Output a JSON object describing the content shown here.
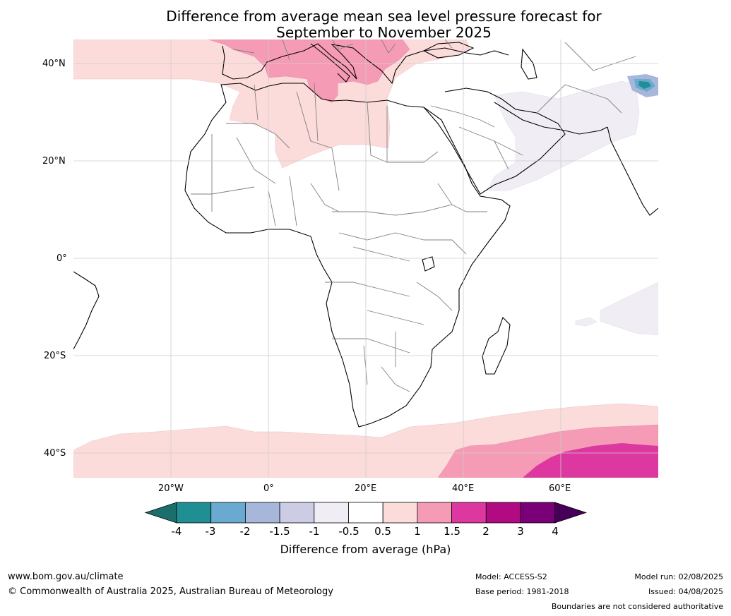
{
  "title": {
    "line1": "Difference from average mean sea level pressure forecast for",
    "line2": "September to November 2025"
  },
  "axes": {
    "lat_labels": [
      "40°N",
      "20°N",
      "0°",
      "20°S",
      "40°S"
    ],
    "lon_labels": [
      "20°W",
      "0°",
      "20°E",
      "40°E",
      "60°E"
    ]
  },
  "colorbar": {
    "title": "Difference from average (hPa)",
    "tick_labels": [
      "-4",
      "-3",
      "-2",
      "-1.5",
      "-1",
      "-0.5",
      "0.5",
      "1",
      "1.5",
      "2",
      "3",
      "4"
    ],
    "colors": [
      "#1b6e6b",
      "#208f94",
      "#6aa9d0",
      "#a7b7d9",
      "#cccde4",
      "#f1edf4",
      "#ffffff",
      "#fcdcda",
      "#f59bb6",
      "#dc38a0",
      "#b20a83",
      "#7a0077",
      "#46005a"
    ]
  },
  "footer": {
    "website": "www.bom.gov.au/climate",
    "copyright": "© Commonwealth of Australia 2025, Australian Bureau of Meteorology",
    "model": "Model: ACCESS-S2",
    "base_period": "Base period: 1981-2018",
    "model_run": "Model run: 02/08/2025",
    "issued": "Issued: 04/08/2025",
    "disclaimer": "Boundaries are not considered authoritative"
  }
}
